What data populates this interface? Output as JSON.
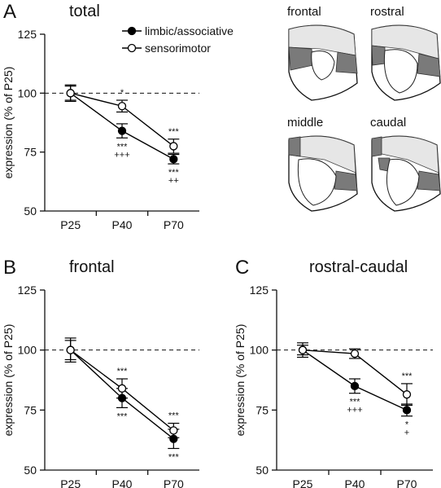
{
  "chart_data": [
    {
      "type": "line",
      "panel": "A",
      "title": "total",
      "categories": [
        "P25",
        "P40",
        "P70"
      ],
      "y_label": "expression (% of P25)",
      "ylim": [
        50,
        125
      ],
      "yticks": [
        50,
        75,
        100,
        125
      ],
      "reference_line": 100,
      "legend": "top-right",
      "series": [
        {
          "name": "limbic/associative",
          "color": "#000000",
          "fill": "#000000",
          "values": [
            100,
            84,
            72
          ],
          "errors": [
            3,
            3,
            2
          ]
        },
        {
          "name": "sensorimotor",
          "color": "#000000",
          "fill": "#ffffff",
          "values": [
            100,
            94.5,
            77.5
          ],
          "errors": [
            3.5,
            2.5,
            3
          ]
        }
      ],
      "annotations": [
        {
          "category": "P40",
          "position": "above",
          "text": [
            "*"
          ]
        },
        {
          "category": "P40",
          "position": "below",
          "text": [
            "***",
            "+++"
          ]
        },
        {
          "category": "P70",
          "position": "above",
          "text": [
            "***"
          ]
        },
        {
          "category": "P70",
          "position": "below",
          "text": [
            "***",
            "++"
          ]
        }
      ]
    },
    {
      "type": "line",
      "panel": "B",
      "title": "frontal",
      "categories": [
        "P25",
        "P40",
        "P70"
      ],
      "y_label": "expression (% of P25)",
      "ylim": [
        50,
        125
      ],
      "yticks": [
        50,
        75,
        100,
        125
      ],
      "reference_line": 100,
      "series": [
        {
          "color": "#000000",
          "fill": "#000000",
          "values": [
            100,
            80,
            63
          ],
          "errors": [
            5,
            4,
            4
          ]
        },
        {
          "color": "#000000",
          "fill": "#ffffff",
          "values": [
            100,
            84,
            66.5
          ],
          "errors": [
            4,
            4,
            3
          ]
        }
      ],
      "annotations": [
        {
          "category": "P40",
          "position": "above",
          "text": [
            "***"
          ]
        },
        {
          "category": "P40",
          "position": "below",
          "text": [
            "***"
          ]
        },
        {
          "category": "P70",
          "position": "above",
          "text": [
            "***"
          ]
        },
        {
          "category": "P70",
          "position": "below",
          "text": [
            "***"
          ]
        }
      ]
    },
    {
      "type": "line",
      "panel": "C",
      "title": "rostral-caudal",
      "categories": [
        "P25",
        "P40",
        "P70"
      ],
      "y_label": "expression (% of P25)",
      "ylim": [
        50,
        125
      ],
      "yticks": [
        50,
        75,
        100,
        125
      ],
      "reference_line": 100,
      "series": [
        {
          "color": "#000000",
          "fill": "#000000",
          "values": [
            100,
            85,
            75
          ],
          "errors": [
            2,
            3,
            2.5
          ]
        },
        {
          "color": "#000000",
          "fill": "#ffffff",
          "values": [
            100,
            98.5,
            81.5
          ],
          "errors": [
            3,
            2,
            4.5
          ]
        }
      ],
      "annotations": [
        {
          "category": "P40",
          "position": "below",
          "text": [
            "***",
            "+++"
          ]
        },
        {
          "category": "P70",
          "position": "above",
          "text": [
            "***"
          ]
        },
        {
          "category": "P70",
          "position": "below",
          "text": [
            "*",
            "+"
          ]
        }
      ]
    }
  ],
  "brain_sections": {
    "labels": [
      "frontal",
      "rostral",
      "middle",
      "caudal"
    ]
  }
}
